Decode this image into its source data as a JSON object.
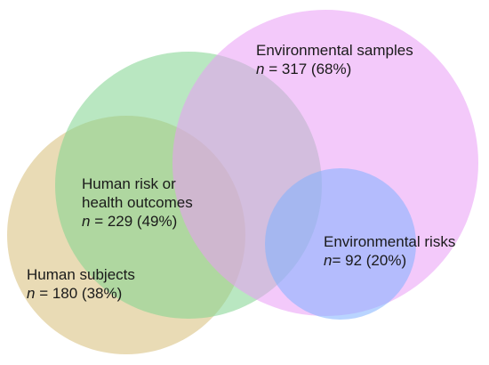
{
  "sets": [
    {
      "key": "env_samples",
      "title": "Environmental samples",
      "n_label": "n",
      "count_text": " = 317 (68%)",
      "fill": "#ea9cf5",
      "opacity": 0.55
    },
    {
      "key": "human_risk",
      "title_line1": "Human risk or",
      "title_line2": "health outcomes",
      "n_label": "n",
      "count_text": " = 229 (49%)",
      "fill": "#7fd48e",
      "opacity": 0.55
    },
    {
      "key": "human_subjects",
      "title": "Human subjects",
      "n_label": "n",
      "count_text": " = 180 (38%)",
      "fill": "#d7be78",
      "opacity": 0.55
    },
    {
      "key": "env_risks",
      "title": "Environmental risks",
      "n_label": "n",
      "count_text": "= 92 (20%)",
      "fill": "#7fb0ff",
      "opacity": 0.55
    }
  ]
}
